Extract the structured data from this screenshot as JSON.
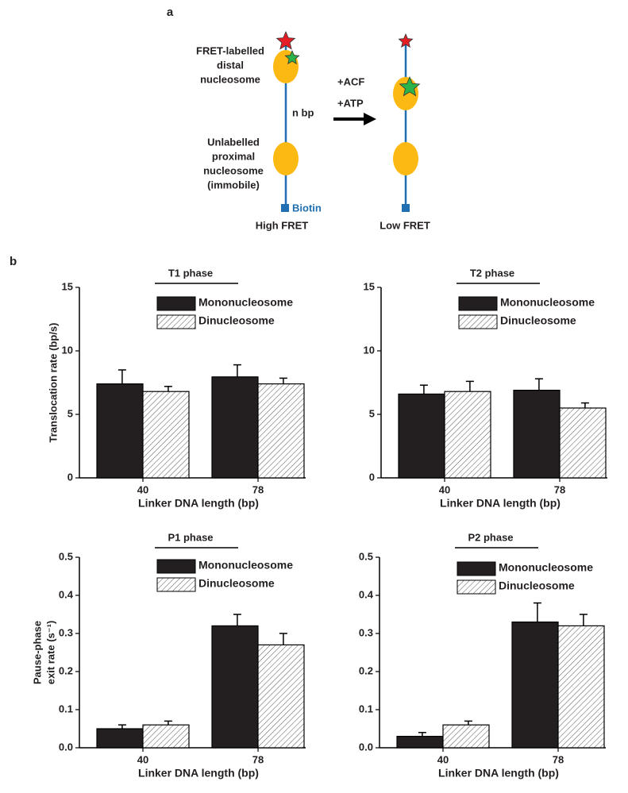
{
  "panel_a": {
    "label": "a",
    "distal_label": [
      "FRET-labelled",
      "distal",
      "nucleosome"
    ],
    "proximal_label": [
      "Unlabelled",
      "proximal",
      "nucleosome",
      "(immobile)"
    ],
    "spacer": "n bp",
    "anchor": "Biotin",
    "conditions": [
      "+ACF",
      "+ATP"
    ],
    "left_caption": "High FRET",
    "right_caption": "Low FRET"
  },
  "panel_b": {
    "label": "b"
  },
  "chart_data": [
    {
      "type": "bar",
      "title": "T1 phase",
      "ylabel": [
        "Translocation rate (bp/s)"
      ],
      "xlabel": "Linker DNA length (bp)",
      "categories": [
        "40",
        "78"
      ],
      "series": [
        {
          "name": "Mononucleosome",
          "color": "#231f20",
          "values": [
            7.4,
            7.95
          ],
          "errors": [
            1.1,
            0.95
          ]
        },
        {
          "name": "Dinucleosome",
          "color": "hatched",
          "values": [
            6.8,
            7.4
          ],
          "errors": [
            0.4,
            0.45
          ]
        }
      ],
      "ylim": [
        0,
        15
      ],
      "yticks": [
        0,
        5,
        10,
        15
      ]
    },
    {
      "type": "bar",
      "title": "T2 phase",
      "xlabel": "Linker DNA length (bp)",
      "categories": [
        "40",
        "78"
      ],
      "series": [
        {
          "name": "Mononucleosome",
          "color": "#231f20",
          "values": [
            6.6,
            6.9
          ],
          "errors": [
            0.7,
            0.9
          ]
        },
        {
          "name": "Dinucleosome",
          "color": "hatched",
          "values": [
            6.8,
            5.5
          ],
          "errors": [
            0.8,
            0.4
          ]
        }
      ],
      "ylim": [
        0,
        15
      ],
      "yticks": [
        0,
        5,
        10,
        15
      ]
    },
    {
      "type": "bar",
      "title": "P1 phase",
      "ylabel": [
        "Pause-phase",
        "exit rate (s⁻¹)"
      ],
      "xlabel": "Linker DNA length (bp)",
      "categories": [
        "40",
        "78"
      ],
      "series": [
        {
          "name": "Mononucleosome",
          "color": "#231f20",
          "values": [
            0.05,
            0.32
          ],
          "errors": [
            0.01,
            0.03
          ]
        },
        {
          "name": "Dinucleosome",
          "color": "hatched",
          "values": [
            0.06,
            0.27
          ],
          "errors": [
            0.01,
            0.03
          ]
        }
      ],
      "ylim": [
        0,
        0.5
      ],
      "yticks": [
        {
          "value": 0,
          "label": "0.0"
        },
        0.1,
        0.2,
        0.3,
        0.4,
        0.5
      ]
    },
    {
      "type": "bar",
      "title": "P2 phase",
      "xlabel": "Linker DNA length (bp)",
      "categories": [
        "40",
        "78"
      ],
      "series": [
        {
          "name": "Mononucleosome",
          "color": "#231f20",
          "values": [
            0.03,
            0.33
          ],
          "errors": [
            0.01,
            0.05
          ]
        },
        {
          "name": "Dinucleosome",
          "color": "hatched",
          "values": [
            0.06,
            0.32
          ],
          "errors": [
            0.01,
            0.03
          ]
        }
      ],
      "ylim": [
        0,
        0.5
      ],
      "yticks": [
        {
          "value": 0,
          "label": "0.0"
        },
        0.1,
        0.2,
        0.3,
        0.4,
        0.5
      ]
    }
  ]
}
